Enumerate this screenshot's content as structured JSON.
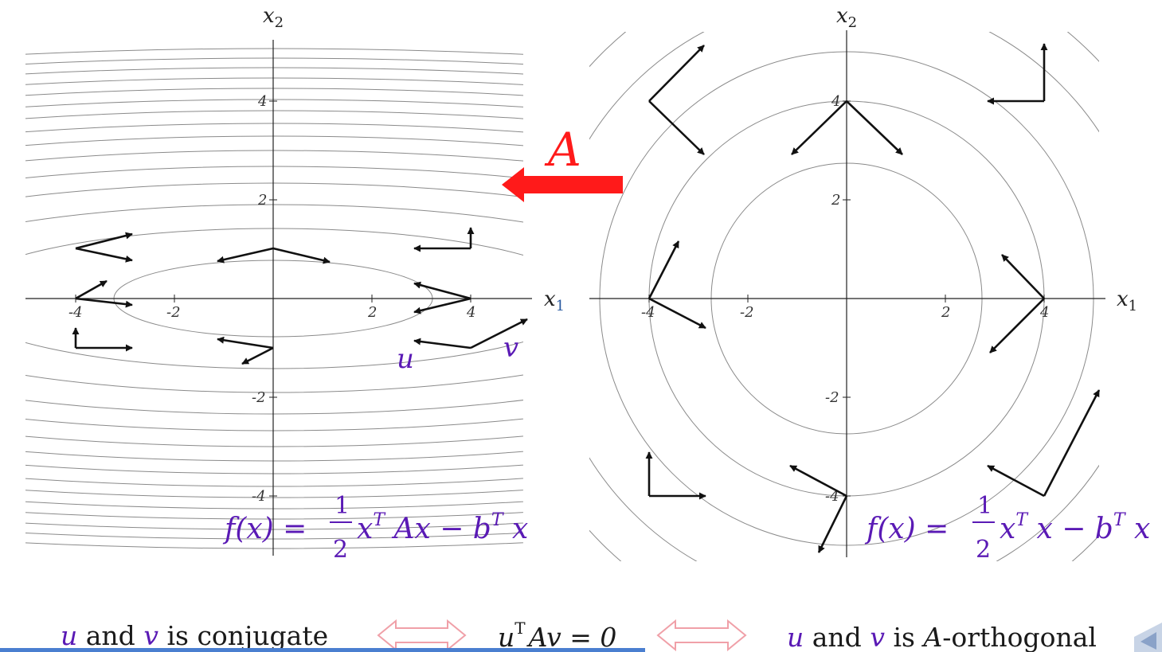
{
  "left_plot": {
    "x_axis_label": "x",
    "x_axis_sub": "1",
    "y_axis_label": "x",
    "y_axis_sub": "2",
    "x_ticks": [
      "-4",
      "-2",
      "2",
      "4"
    ],
    "y_ticks": [
      "4",
      "2",
      "-2",
      "-4"
    ],
    "u_label": "u",
    "v_label": "v",
    "formula": {
      "lhs": "f(x) = ",
      "frac_num": "1",
      "frac_den": "2",
      "rest_a": "x",
      "sup_t1": "T",
      "rest_b": " Ax − b",
      "sup_t2": "T",
      "rest_c": " x"
    }
  },
  "right_plot": {
    "x_axis_label": "x",
    "x_axis_sub": "1",
    "y_axis_label": "x",
    "y_axis_sub": "2",
    "x_ticks": [
      "-4",
      "-2",
      "2",
      "4"
    ],
    "y_ticks": [
      "4",
      "2",
      "-2",
      "-4"
    ],
    "formula": {
      "lhs": "f(x) = ",
      "frac_num": "1",
      "frac_den": "2",
      "rest_a": "x",
      "sup_t1": "T",
      "rest_b": " x − b",
      "sup_t2": "T",
      "rest_c": " x"
    }
  },
  "transform_label": "A",
  "bottom": {
    "part1_u": "u",
    "part1_mid": " and ",
    "part1_v": "v",
    "part1_end": " is conjugate",
    "part2_u": "u",
    "part2_sup": "T",
    "part2_rest": "Av = 0",
    "part3_u": "u",
    "part3_mid": " and ",
    "part3_v": "v",
    "part3_is": " is ",
    "part3_A": "A",
    "part3_end": "-orthogonal"
  },
  "colors": {
    "math_purple": "#5a1ab5",
    "arrow_red": "#ff1a1a",
    "equiv_arrow": "#f0a0a8",
    "contour": "#888888",
    "axis": "#222222"
  }
}
